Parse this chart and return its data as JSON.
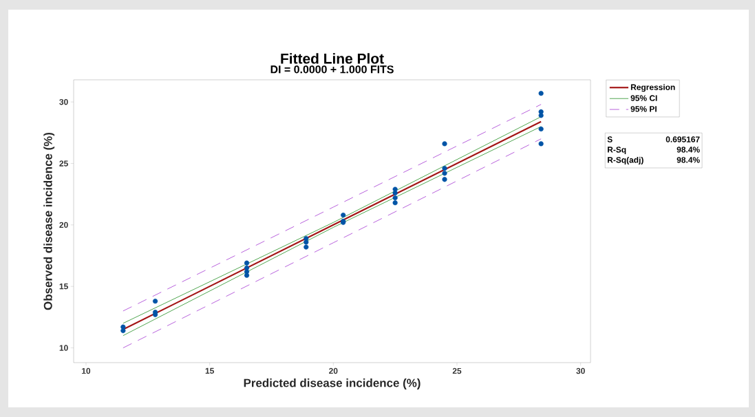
{
  "chart_data": {
    "type": "scatter",
    "title": "Fitted Line Plot",
    "subtitle": "DI = 0.0000 + 1.000 FITS",
    "xlabel": "Predicted disease incidence (%)",
    "ylabel": "Observed disease incidence (%)",
    "xlim": [
      9.5,
      30.4
    ],
    "ylim": [
      8.8,
      31.8
    ],
    "xticks": [
      10,
      15,
      20,
      25,
      30
    ],
    "yticks": [
      10,
      15,
      20,
      25,
      30
    ],
    "legend": "top right",
    "annotations": [
      "S",
      "0.695167",
      "R-Sq",
      "98.4%",
      "R-Sq(adj)",
      "98.4%"
    ],
    "series": [
      {
        "color": "#0054a6",
        "x": [
          11.5,
          11.5,
          12.8,
          12.8,
          12.8,
          16.5,
          16.5,
          16.5,
          16.5,
          18.9,
          18.9,
          18.9,
          20.4,
          20.4,
          20.4,
          22.5,
          22.5,
          22.5,
          22.5,
          24.5,
          24.5,
          24.5,
          24.5,
          28.4,
          28.4,
          28.4,
          28.4,
          28.4
        ],
        "values": [
          11.7,
          11.4,
          13.8,
          12.9,
          12.7,
          16.9,
          16.5,
          16.2,
          15.9,
          18.9,
          18.6,
          18.2,
          20.8,
          20.3,
          20.2,
          22.9,
          22.6,
          22.2,
          21.8,
          26.6,
          24.6,
          24.2,
          23.7,
          30.7,
          29.2,
          28.9,
          27.8,
          26.6
        ]
      },
      {
        "type": "line",
        "name": "Regression",
        "color": "#a31515",
        "line_style": "solid",
        "x": [
          11.5,
          28.4
        ],
        "values": [
          11.5,
          28.4
        ]
      },
      {
        "type": "line",
        "name": "95% CI",
        "color": "#3c9c3c",
        "line_style": "solid",
        "x": [
          11.5,
          20,
          28.4
        ],
        "values": [
          12.0,
          20.2,
          28.8
        ]
      },
      {
        "type": "line",
        "color": "#3c9c3c",
        "line_style": "solid",
        "x": [
          11.5,
          20,
          28.4
        ],
        "values": [
          11.0,
          19.8,
          28.0
        ]
      },
      {
        "type": "line",
        "name": "95% PI",
        "color": "#b04fd8",
        "line_style": "dashed",
        "x": [
          11.5,
          20,
          28.4
        ],
        "values": [
          13.0,
          21.45,
          29.8
        ]
      },
      {
        "type": "line",
        "color": "#b04fd8",
        "line_style": "dashed",
        "x": [
          11.5,
          20,
          28.4
        ],
        "values": [
          10.0,
          18.55,
          27.0
        ]
      }
    ]
  }
}
